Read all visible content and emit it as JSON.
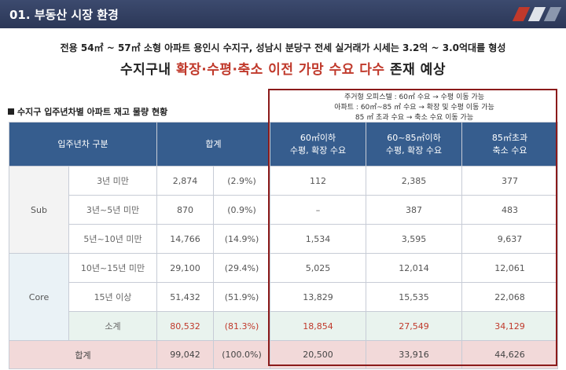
{
  "header": {
    "title": "01. 부동산 시장 환경"
  },
  "headline": {
    "sub": "전용 54㎡ ~ 57㎡ 소형 아파트 용인시 수지구, 성남시 분당구 전세 실거래가 시세는 3.2억 ~ 3.0억대를 형성",
    "main_pre": "수지구내 ",
    "main_red": "확장·수평·축소 이전 가망 수요 다수",
    "main_post": " 존재 예상"
  },
  "section_label": "수지구 입주년차별 아파트 재고 물량 현황",
  "note": {
    "line1": "주거형 오피스텔 : 60㎡ 수요 → 수평 이동 가능",
    "line2": "아파트 : 60㎡~85 ㎡ 수요 → 확장 및 수평 이동 가능",
    "line3": "85 ㎡ 초과 수요 → 축소 수요 이동 가능"
  },
  "table": {
    "headers": {
      "category": "입주년차 구분",
      "total": "합계",
      "c1_l1": "60㎡이하",
      "c1_l2": "수평, 확장 수요",
      "c2_l1": "60~85㎡이하",
      "c2_l2": "수평, 확장 수요",
      "c3_l1": "85㎡초과",
      "c3_l2": "축소 수요"
    },
    "groups": {
      "sub": "Sub",
      "core": "Core"
    },
    "rows": [
      {
        "label": "3년 미만",
        "total": "2,874",
        "pct": "(2.9%)",
        "c1": "112",
        "c2": "2,385",
        "c3": "377"
      },
      {
        "label": "3년~5년 미만",
        "total": "870",
        "pct": "(0.9%)",
        "c1": "–",
        "c2": "387",
        "c3": "483"
      },
      {
        "label": "5년~10년 미만",
        "total": "14,766",
        "pct": "(14.9%)",
        "c1": "1,534",
        "c2": "3,595",
        "c3": "9,637"
      },
      {
        "label": "10년~15년 미만",
        "total": "29,100",
        "pct": "(29.4%)",
        "c1": "5,025",
        "c2": "12,014",
        "c3": "12,061"
      },
      {
        "label": "15년 이상",
        "total": "51,432",
        "pct": "(51.9%)",
        "c1": "13,829",
        "c2": "15,535",
        "c3": "22,068"
      }
    ],
    "subtotal": {
      "label": "소계",
      "total": "80,532",
      "pct": "(81.3%)",
      "c1": "18,854",
      "c2": "27,549",
      "c3": "34,129"
    },
    "grand_total": {
      "label": "합계",
      "total": "99,042",
      "pct": "(100.0%)",
      "c1": "20,500",
      "c2": "33,916",
      "c3": "44,626"
    }
  },
  "colors": {
    "header_bg": "#2b3757",
    "table_header": "#365d8e",
    "accent_red": "#c0392b",
    "highlight_border": "#8b1a1a"
  }
}
